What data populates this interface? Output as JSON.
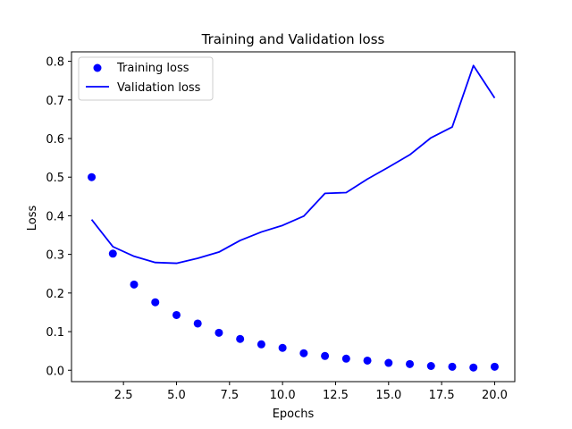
{
  "chart_data": {
    "type": "line",
    "title": "Training and Validation loss",
    "xlabel": "Epochs",
    "ylabel": "Loss",
    "xlim": [
      0.05,
      20.95
    ],
    "ylim": [
      -0.0295,
      0.8245
    ],
    "xticks": [
      2.5,
      5.0,
      7.5,
      10.0,
      12.5,
      15.0,
      17.5,
      20.0
    ],
    "xtick_labels": [
      "2.5",
      "5.0",
      "7.5",
      "10.0",
      "12.5",
      "15.0",
      "17.5",
      "20.0"
    ],
    "yticks": [
      0.0,
      0.1,
      0.2,
      0.3,
      0.4,
      0.5,
      0.6,
      0.7,
      0.8
    ],
    "ytick_labels": [
      "0.0",
      "0.1",
      "0.2",
      "0.3",
      "0.4",
      "0.5",
      "0.6",
      "0.7",
      "0.8"
    ],
    "grid": false,
    "legend_position": "top-left",
    "x": [
      1,
      2,
      3,
      4,
      5,
      6,
      7,
      8,
      9,
      10,
      11,
      12,
      13,
      14,
      15,
      16,
      17,
      18,
      19,
      20
    ],
    "series": [
      {
        "name": "Training loss",
        "style": "markers",
        "color": "#0000ff",
        "values": [
          0.5,
          0.302,
          0.222,
          0.176,
          0.143,
          0.121,
          0.097,
          0.081,
          0.067,
          0.058,
          0.044,
          0.037,
          0.03,
          0.025,
          0.019,
          0.016,
          0.011,
          0.009,
          0.007,
          0.009
        ]
      },
      {
        "name": "Validation loss",
        "style": "line",
        "color": "#0000ff",
        "values": [
          0.39,
          0.32,
          0.295,
          0.279,
          0.277,
          0.29,
          0.306,
          0.336,
          0.358,
          0.375,
          0.399,
          0.458,
          0.46,
          0.495,
          0.526,
          0.558,
          0.602,
          0.63,
          0.789,
          0.705
        ]
      }
    ]
  }
}
